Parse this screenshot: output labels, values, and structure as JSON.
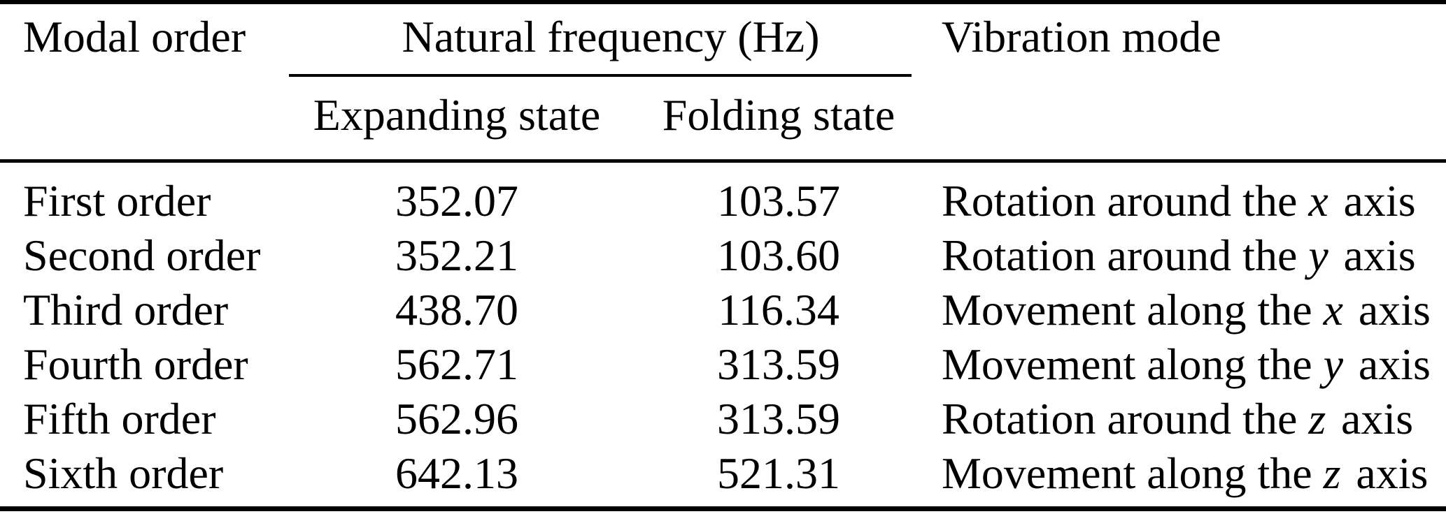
{
  "table": {
    "colors": {
      "text": "#000000",
      "background": "#ffffff",
      "rule": "#000000"
    },
    "header": {
      "modal_order": "Modal order",
      "natural_frequency_group": "Natural frequency (Hz)",
      "expanding_state": "Expanding state",
      "folding_state": "Folding state",
      "vibration_mode": "Vibration mode"
    },
    "rows": [
      {
        "order": "First order",
        "expanding": "352.07",
        "folding": "103.57",
        "mode_before": "Rotation around the ",
        "mode_var": "x",
        "mode_after": " axis"
      },
      {
        "order": "Second order",
        "expanding": "352.21",
        "folding": "103.60",
        "mode_before": "Rotation around the ",
        "mode_var": "y",
        "mode_after": " axis"
      },
      {
        "order": "Third order",
        "expanding": "438.70",
        "folding": "116.34",
        "mode_before": "Movement along the ",
        "mode_var": "x",
        "mode_after": " axis"
      },
      {
        "order": "Fourth order",
        "expanding": "562.71",
        "folding": "313.59",
        "mode_before": "Movement along the ",
        "mode_var": "y",
        "mode_after": " axis"
      },
      {
        "order": "Fifth order",
        "expanding": "562.96",
        "folding": "313.59",
        "mode_before": "Rotation around the ",
        "mode_var": "z",
        "mode_after": " axis"
      },
      {
        "order": "Sixth order",
        "expanding": "642.13",
        "folding": "521.31",
        "mode_before": "Movement along the ",
        "mode_var": "z",
        "mode_after": " axis"
      }
    ]
  },
  "chart_data": {
    "type": "table",
    "title": "",
    "columns": [
      "Modal order",
      "Natural frequency (Hz) - Expanding state",
      "Natural frequency (Hz) - Folding state",
      "Vibration mode"
    ],
    "rows": [
      [
        "First order",
        352.07,
        103.57,
        "Rotation around the x axis"
      ],
      [
        "Second order",
        352.21,
        103.6,
        "Rotation around the y axis"
      ],
      [
        "Third order",
        438.7,
        116.34,
        "Movement along the x axis"
      ],
      [
        "Fourth order",
        562.71,
        313.59,
        "Movement along the y axis"
      ],
      [
        "Fifth order",
        562.96,
        313.59,
        "Rotation around the z axis"
      ],
      [
        "Sixth order",
        642.13,
        521.31,
        "Movement along the z axis"
      ]
    ]
  }
}
